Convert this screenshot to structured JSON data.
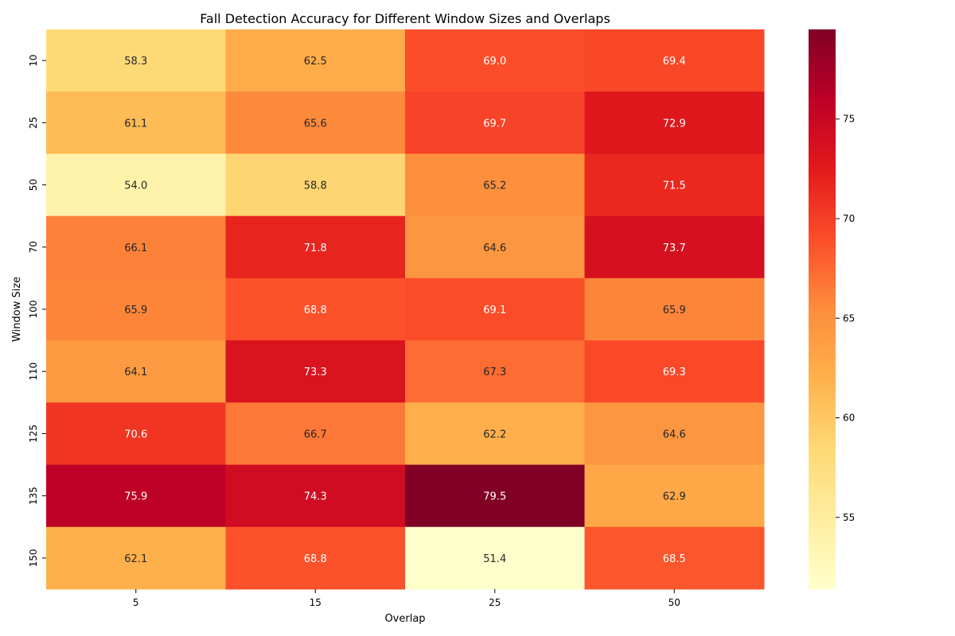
{
  "chart_data": {
    "type": "heatmap",
    "title": "Fall Detection Accuracy for Different Window Sizes and Overlaps",
    "xlabel": "Overlap",
    "ylabel": "Window Size",
    "x_categories": [
      "5",
      "15",
      "25",
      "50"
    ],
    "y_categories": [
      "10",
      "25",
      "50",
      "70",
      "100",
      "110",
      "125",
      "135",
      "150"
    ],
    "values": [
      [
        58.3,
        62.5,
        69.0,
        69.4
      ],
      [
        61.1,
        65.6,
        69.7,
        72.9
      ],
      [
        54.0,
        58.8,
        65.2,
        71.5
      ],
      [
        66.1,
        71.8,
        64.6,
        73.7
      ],
      [
        65.9,
        68.8,
        69.1,
        65.9
      ],
      [
        64.1,
        73.3,
        67.3,
        69.3
      ],
      [
        70.6,
        66.7,
        62.2,
        64.6
      ],
      [
        75.9,
        74.3,
        79.5,
        62.9
      ],
      [
        62.1,
        68.8,
        51.4,
        68.5
      ]
    ],
    "colormap": "YlOrRd",
    "colorbar": {
      "range": [
        51.4,
        79.5
      ],
      "ticks": [
        55,
        60,
        65,
        70,
        75
      ]
    }
  }
}
